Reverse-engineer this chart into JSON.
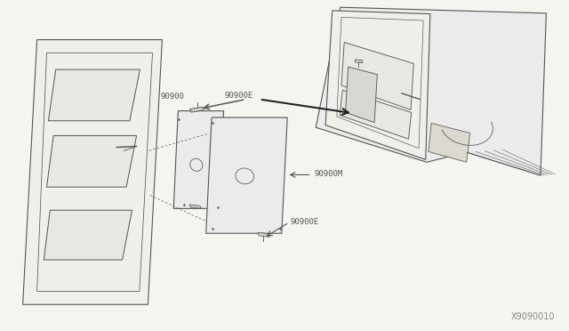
{
  "background_color": "#f5f5f0",
  "line_color": "#555555",
  "face_color_door": "#f0f0eb",
  "face_color_trim": "#ebebeb",
  "face_color_win": "#e8e8e3",
  "face_color_body": "#ebebeb",
  "face_color_bracket": "#d0d0cb",
  "diagram_code": "X9090010",
  "label_90900": "90900",
  "label_90900E": "90900E",
  "label_90900M": "90900M"
}
